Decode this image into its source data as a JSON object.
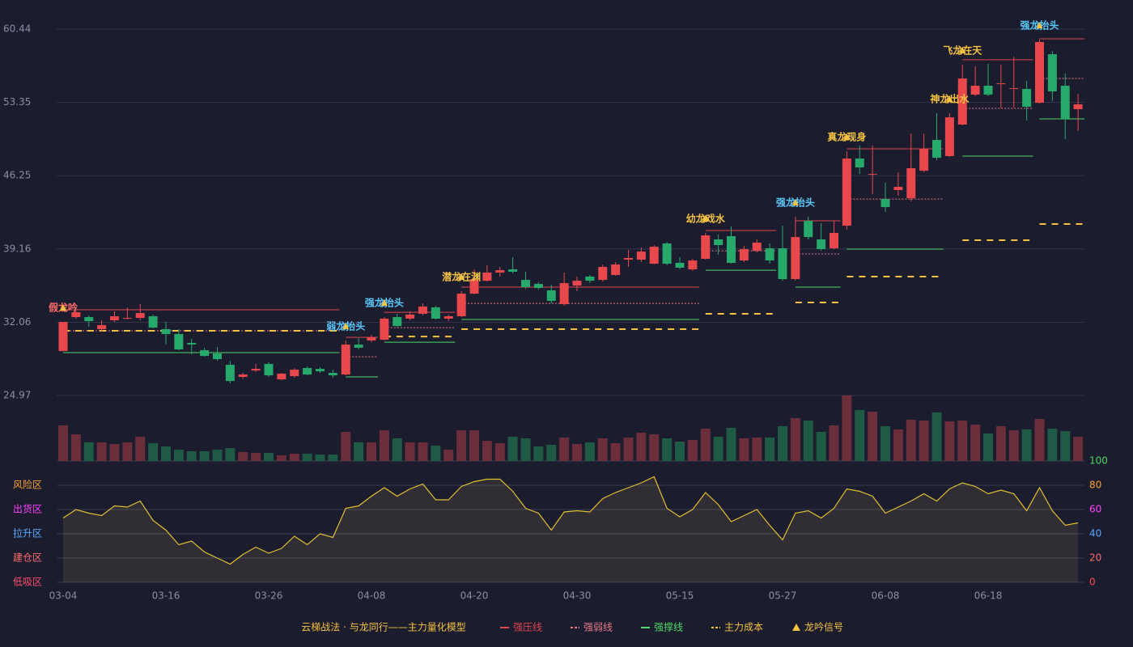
{
  "chart_data": {
    "type": "candlestick",
    "categories": [
      "03-04",
      null,
      null,
      null,
      null,
      null,
      null,
      null,
      "03-16",
      null,
      null,
      null,
      null,
      null,
      null,
      null,
      "03-26",
      null,
      null,
      null,
      null,
      null,
      null,
      null,
      "04-08",
      null,
      null,
      null,
      null,
      null,
      null,
      null,
      "04-20",
      null,
      null,
      null,
      null,
      null,
      null,
      null,
      "04-30",
      null,
      null,
      null,
      null,
      null,
      null,
      null,
      "05-15",
      null,
      null,
      null,
      null,
      null,
      null,
      null,
      "05-27",
      null,
      null,
      null,
      null,
      null,
      null,
      null,
      "06-08",
      null,
      null,
      null,
      null,
      null,
      null,
      null,
      "06-18",
      null,
      null,
      null,
      null,
      null,
      null,
      null
    ],
    "ylim": [
      24.97,
      60.44
    ],
    "yticks": [
      24.97,
      32.06,
      39.16,
      46.25,
      53.35,
      60.44
    ],
    "grid": true,
    "up_color": "#e8484b",
    "down_color": "#26a96a",
    "open": [
      29.27,
      32.56,
      32.56,
      31.39,
      32.25,
      32.41,
      32.48,
      32.64,
      31.39,
      30.92,
      30.06,
      29.35,
      29.04,
      27.94,
      26.77,
      27.39,
      28.02,
      26.53,
      26.84,
      27.63,
      27.55,
      27.16,
      27.0,
      29.9,
      30.29,
      30.37,
      32.56,
      32.41,
      32.88,
      33.5,
      32.41,
      32.64,
      34.83,
      36.08,
      36.87,
      37.18,
      36.16,
      35.77,
      35.15,
      33.81,
      35.61,
      36.48,
      36.16,
      36.63,
      38.12,
      38.12,
      37.73,
      39.69,
      37.81,
      37.18,
      38.2,
      40.08,
      40.39,
      38.04,
      38.98,
      39.22,
      39.22,
      36.24,
      41.88,
      40.08,
      39.22,
      41.41,
      47.91,
      46.34,
      43.99,
      44.86,
      44.07,
      46.73,
      49.71,
      48.15,
      51.2,
      54.1,
      54.96,
      55.11,
      54.65,
      54.65,
      53.31,
      58.01,
      54.96,
      52.69
    ],
    "high": [
      32.09,
      33.19,
      32.72,
      32.25,
      33.11,
      33.5,
      33.82,
      32.8,
      32.09,
      31.39,
      30.45,
      29.59,
      29.66,
      28.33,
      27.16,
      28.02,
      28.18,
      27.16,
      27.63,
      27.78,
      27.71,
      27.47,
      30.29,
      30.53,
      30.84,
      32.56,
      32.88,
      33.11,
      33.89,
      33.66,
      32.8,
      35.07,
      37.18,
      37.57,
      37.42,
      38.36,
      36.95,
      35.93,
      35.69,
      36.87,
      36.48,
      36.63,
      37.65,
      37.89,
      39.06,
      39.3,
      39.53,
      39.84,
      38.36,
      38.2,
      40.71,
      40.55,
      41.33,
      39.45,
      40.08,
      39.69,
      41.41,
      42.27,
      42.27,
      41.65,
      41.88,
      48.62,
      49.16,
      49.16,
      45.56,
      46.58,
      50.34,
      50.34,
      52.3,
      52.3,
      56.99,
      56.84,
      57.07,
      56.99,
      57.78,
      55.43,
      59.42,
      58.33,
      56.13,
      54.17
    ],
    "low": [
      29.27,
      32.41,
      31.62,
      31.15,
      32.09,
      32.33,
      32.25,
      31.47,
      29.9,
      29.35,
      28.96,
      28.72,
      28.33,
      26.14,
      26.61,
      27.24,
      26.77,
      26.45,
      26.69,
      26.92,
      27.16,
      26.69,
      26.92,
      29.43,
      30.13,
      30.29,
      31.62,
      32.25,
      32.72,
      32.33,
      32.17,
      32.56,
      34.75,
      36.0,
      36.48,
      36.79,
      35.3,
      35.22,
      33.89,
      33.66,
      35.07,
      35.85,
      36.0,
      36.56,
      37.42,
      37.89,
      37.65,
      37.57,
      37.18,
      37.02,
      38.12,
      38.59,
      37.73,
      37.89,
      38.83,
      37.73,
      36.08,
      36.08,
      40.08,
      38.98,
      39.14,
      41.02,
      46.42,
      44.47,
      42.74,
      44.31,
      43.76,
      46.58,
      47.75,
      48.07,
      51.12,
      53.94,
      53.94,
      52.77,
      52.84,
      51.59,
      53.24,
      53.47,
      49.79,
      50.57
    ],
    "close": [
      32.09,
      33.03,
      32.17,
      31.78,
      32.64,
      32.48,
      32.95,
      31.54,
      30.92,
      29.43,
      29.9,
      28.8,
      28.49,
      26.37,
      27.0,
      27.55,
      26.92,
      27.08,
      27.47,
      27.0,
      27.31,
      26.92,
      29.9,
      29.59,
      30.6,
      32.41,
      31.7,
      32.8,
      33.58,
      32.41,
      32.64,
      34.83,
      36.24,
      36.87,
      37.1,
      36.95,
      35.46,
      35.38,
      34.13,
      35.85,
      36.08,
      36.08,
      37.42,
      37.65,
      38.28,
      38.9,
      39.37,
      37.73,
      37.34,
      38.04,
      40.47,
      39.53,
      37.81,
      39.14,
      39.77,
      38.04,
      36.24,
      40.31,
      40.31,
      39.14,
      40.71,
      47.91,
      47.05,
      46.42,
      43.21,
      45.17,
      46.97,
      48.85,
      47.99,
      51.9,
      55.66,
      54.96,
      54.1,
      55.19,
      54.72,
      52.92,
      59.19,
      54.41,
      51.75,
      53.16
    ],
    "volume": [
      44,
      33,
      23,
      23,
      21,
      23,
      30,
      22,
      18,
      14,
      12,
      12,
      14,
      16,
      11,
      10,
      10,
      7,
      9,
      9,
      8,
      8,
      36,
      23,
      23,
      38,
      28,
      23,
      23,
      19,
      14,
      38,
      38,
      25,
      22,
      30,
      28,
      18,
      20,
      29,
      21,
      23,
      28,
      22,
      29,
      35,
      33,
      28,
      24,
      26,
      40,
      30,
      41,
      28,
      29,
      29,
      43,
      53,
      50,
      36,
      44,
      81,
      63,
      61,
      43,
      39,
      51,
      50,
      60,
      49,
      50,
      45,
      34,
      43,
      38,
      39,
      52,
      40,
      37,
      30
    ],
    "volume_up_color": "#6b2e3a",
    "volume_down_color": "#1f5a44",
    "levels": [
      {
        "name": "强压线",
        "color": "#e0434f",
        "style": "solid",
        "segments": [
          {
            "from": 0,
            "to": 21,
            "value": 33.27
          },
          {
            "from": 22,
            "to": 24,
            "value": 30.6
          },
          {
            "from": 25,
            "to": 30,
            "value": 33.03
          },
          {
            "from": 31,
            "to": 49,
            "value": 35.46
          },
          {
            "from": 50,
            "to": 55,
            "value": 40.94
          },
          {
            "from": 57,
            "to": 60,
            "value": 41.88
          },
          {
            "from": 61,
            "to": 68,
            "value": 48.85
          },
          {
            "from": 70,
            "to": 75,
            "value": 57.47
          },
          {
            "from": 76,
            "to": 79,
            "value": 59.5
          }
        ]
      },
      {
        "name": "强弱线",
        "color": "#e8798a",
        "style": "dotted",
        "segments": [
          {
            "from": 0,
            "to": 21,
            "value": 31.23
          },
          {
            "from": 22,
            "to": 24,
            "value": 28.72
          },
          {
            "from": 25,
            "to": 30,
            "value": 31.54
          },
          {
            "from": 31,
            "to": 49,
            "value": 33.89
          },
          {
            "from": 50,
            "to": 55,
            "value": 38.98
          },
          {
            "from": 57,
            "to": 60,
            "value": 38.67
          },
          {
            "from": 61,
            "to": 68,
            "value": 43.99
          },
          {
            "from": 70,
            "to": 75,
            "value": 52.77
          },
          {
            "from": 76,
            "to": 79,
            "value": 55.66
          }
        ]
      },
      {
        "name": "强撑线",
        "color": "#4cd964",
        "style": "solid",
        "segments": [
          {
            "from": 0,
            "to": 21,
            "value": 29.12
          },
          {
            "from": 22,
            "to": 24,
            "value": 26.77
          },
          {
            "from": 25,
            "to": 30,
            "value": 30.13
          },
          {
            "from": 31,
            "to": 49,
            "value": 32.33
          },
          {
            "from": 50,
            "to": 55,
            "value": 37.1
          },
          {
            "from": 57,
            "to": 60,
            "value": 35.46
          },
          {
            "from": 61,
            "to": 68,
            "value": 39.14
          },
          {
            "from": 70,
            "to": 75,
            "value": 48.15
          },
          {
            "from": 76,
            "to": 79,
            "value": 51.75
          }
        ]
      },
      {
        "name": "主力成本",
        "color": "#f5c242",
        "style": "dashed",
        "segments": [
          {
            "from": 0,
            "to": 21,
            "value": 31.23
          },
          {
            "from": 25,
            "to": 30,
            "value": 30.68
          },
          {
            "from": 31,
            "to": 49,
            "value": 31.39
          },
          {
            "from": 50,
            "to": 55,
            "value": 32.88
          },
          {
            "from": 57,
            "to": 60,
            "value": 33.97
          },
          {
            "from": 61,
            "to": 68,
            "value": 36.48
          },
          {
            "from": 70,
            "to": 75,
            "value": 40.0
          },
          {
            "from": 76,
            "to": 79,
            "value": 41.57
          }
        ]
      }
    ],
    "signal_legend": "龙吟信号",
    "signal_marker_color": "#f5c242",
    "signals": [
      {
        "label": "假龙吟",
        "index": 0,
        "color": "#ff6b6b"
      },
      {
        "label": "弱龙抬头",
        "index": 22,
        "color": "#5ac8fa"
      },
      {
        "label": "强龙抬头",
        "index": 25,
        "color": "#5ac8fa"
      },
      {
        "label": "潜龙在渊",
        "index": 31,
        "color": "#f5c242"
      },
      {
        "label": "幼龙戏水",
        "index": 50,
        "color": "#f5c242"
      },
      {
        "label": "强龙抬头",
        "index": 57,
        "color": "#5ac8fa"
      },
      {
        "label": "真龙现身",
        "index": 61,
        "color": "#f5c242"
      },
      {
        "label": "神龙出水",
        "index": 69,
        "color": "#f5c242"
      },
      {
        "label": "飞龙在天",
        "index": 70,
        "color": "#f5c242"
      },
      {
        "label": "强龙抬头",
        "index": 76,
        "color": "#5ac8fa"
      }
    ],
    "indicator": {
      "type": "line",
      "color": "#e0c030",
      "ylim": [
        0,
        100
      ],
      "yticks": [
        0,
        20,
        40,
        60,
        80,
        100
      ],
      "ytick_colors": [
        "#ff4d4d",
        "#ff6b6b",
        "#5aa9ff",
        "#ff40ff",
        "#f5a030",
        "#4cd964"
      ],
      "zones": [
        {
          "label": "风险区",
          "value": 80,
          "color": "#f5a030"
        },
        {
          "label": "出货区",
          "value": 60,
          "color": "#ff40ff"
        },
        {
          "label": "拉升区",
          "value": 40,
          "color": "#5aa9ff"
        },
        {
          "label": "建仓区",
          "value": 20,
          "color": "#ff6b6b"
        },
        {
          "label": "低吸区",
          "value": 0,
          "color": "#ff4d6d"
        }
      ],
      "values": [
        53,
        60,
        57,
        55,
        63,
        62,
        67,
        51,
        43,
        31,
        34,
        25,
        20,
        15,
        23,
        29,
        24,
        28,
        38,
        31,
        40,
        37,
        61,
        63,
        71,
        78,
        71,
        77,
        81,
        68,
        68,
        79,
        83,
        85,
        85,
        75,
        61,
        57,
        43,
        58,
        59,
        58,
        69,
        74,
        78,
        82,
        87,
        61,
        54,
        60,
        74,
        64,
        50,
        55,
        60,
        47,
        35,
        57,
        59,
        53,
        61,
        77,
        75,
        71,
        57,
        62,
        67,
        73,
        67,
        77,
        82,
        79,
        73,
        76,
        73,
        59,
        78,
        59,
        47,
        49
      ]
    },
    "legend_title": "云梯战法 · 与龙同行——主力量化模型"
  }
}
